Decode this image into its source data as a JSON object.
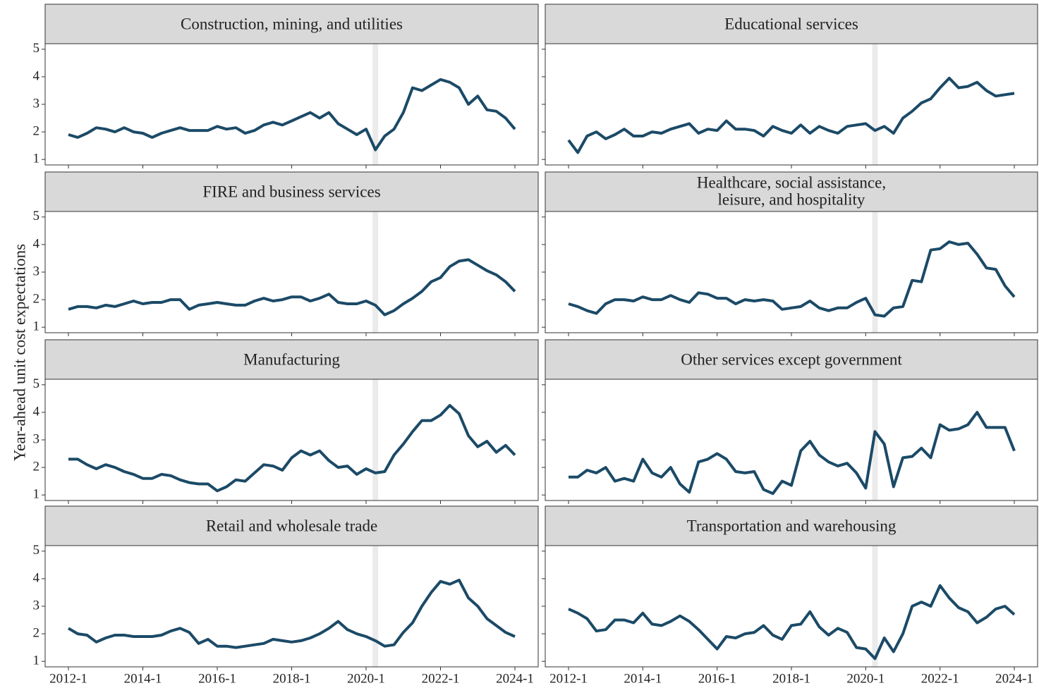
{
  "y_label": "Year-ahead unit cost expectations",
  "shared_axes": {
    "categories": [
      "2012-1",
      null,
      null,
      null,
      null,
      null,
      null,
      null,
      "2014-1",
      null,
      null,
      null,
      null,
      null,
      null,
      null,
      "2016-1",
      null,
      null,
      null,
      null,
      null,
      null,
      null,
      "2018-1",
      null,
      null,
      null,
      null,
      null,
      null,
      null,
      "2020-1",
      null,
      null,
      null,
      null,
      null,
      null,
      null,
      "2022-1",
      null,
      null,
      null,
      null,
      null,
      null,
      null,
      "2024-1"
    ],
    "ylim": [
      0.8,
      5.2
    ],
    "yticks": [
      1,
      2,
      3,
      4,
      5
    ],
    "shaded_index": 33,
    "color": "#1b4a67"
  },
  "chart_data": [
    {
      "type": "line",
      "title": "Construction, mining, and utilities",
      "values": [
        1.9,
        1.8,
        1.95,
        2.15,
        2.1,
        2.0,
        2.15,
        2.0,
        1.95,
        1.8,
        1.95,
        2.05,
        2.15,
        2.05,
        2.05,
        2.05,
        2.2,
        2.1,
        2.15,
        1.95,
        2.05,
        2.25,
        2.35,
        2.25,
        2.4,
        2.55,
        2.7,
        2.5,
        2.7,
        2.3,
        2.1,
        1.9,
        2.1,
        1.35,
        1.85,
        2.1,
        2.7,
        3.6,
        3.5,
        3.7,
        3.9,
        3.8,
        3.6,
        3.0,
        3.3,
        2.8,
        2.75,
        2.5,
        2.1
      ]
    },
    {
      "type": "line",
      "title": "Educational services",
      "values": [
        1.7,
        1.25,
        1.85,
        2.0,
        1.75,
        1.9,
        2.1,
        1.85,
        1.85,
        2.0,
        1.95,
        2.1,
        2.2,
        2.3,
        1.95,
        2.1,
        2.05,
        2.4,
        2.1,
        2.1,
        2.05,
        1.85,
        2.2,
        2.05,
        1.95,
        2.25,
        1.95,
        2.2,
        2.05,
        1.95,
        2.2,
        2.25,
        2.3,
        2.05,
        2.2,
        1.95,
        2.5,
        2.75,
        3.05,
        3.2,
        3.6,
        3.95,
        3.6,
        3.65,
        3.8,
        3.5,
        3.3,
        3.35,
        3.4
      ]
    },
    {
      "type": "line",
      "title": "FIRE and business services",
      "values": [
        1.65,
        1.75,
        1.75,
        1.7,
        1.8,
        1.75,
        1.85,
        1.95,
        1.85,
        1.9,
        1.9,
        2.0,
        2.0,
        1.65,
        1.8,
        1.85,
        1.9,
        1.85,
        1.8,
        1.8,
        1.95,
        2.05,
        1.95,
        2.0,
        2.1,
        2.1,
        1.95,
        2.05,
        2.2,
        1.9,
        1.85,
        1.85,
        1.95,
        1.8,
        1.45,
        1.6,
        1.85,
        2.05,
        2.3,
        2.65,
        2.8,
        3.2,
        3.4,
        3.45,
        3.25,
        3.05,
        2.9,
        2.65,
        2.3
      ]
    },
    {
      "type": "line",
      "title": [
        "Healthcare, social assistance,",
        "leisure, and hospitality"
      ],
      "values": [
        1.85,
        1.75,
        1.6,
        1.5,
        1.85,
        2.0,
        2.0,
        1.95,
        2.1,
        2.0,
        2.0,
        2.15,
        2.0,
        1.9,
        2.25,
        2.2,
        2.05,
        2.05,
        1.85,
        2.0,
        1.95,
        2.0,
        1.95,
        1.65,
        1.7,
        1.75,
        1.95,
        1.7,
        1.6,
        1.7,
        1.7,
        1.9,
        2.05,
        1.45,
        1.4,
        1.7,
        1.75,
        2.7,
        2.65,
        3.8,
        3.85,
        4.1,
        4.0,
        4.05,
        3.65,
        3.15,
        3.1,
        2.5,
        2.1
      ]
    },
    {
      "type": "line",
      "title": "Manufacturing",
      "values": [
        2.3,
        2.3,
        2.1,
        1.95,
        2.1,
        2.0,
        1.85,
        1.75,
        1.6,
        1.6,
        1.75,
        1.7,
        1.55,
        1.45,
        1.4,
        1.4,
        1.15,
        1.3,
        1.55,
        1.5,
        1.8,
        2.1,
        2.05,
        1.9,
        2.35,
        2.6,
        2.45,
        2.6,
        2.25,
        2.0,
        2.05,
        1.75,
        1.95,
        1.8,
        1.85,
        2.45,
        2.85,
        3.3,
        3.7,
        3.7,
        3.9,
        4.25,
        3.95,
        3.15,
        2.75,
        2.95,
        2.55,
        2.8,
        2.45
      ]
    },
    {
      "type": "line",
      "title": "Other services except government",
      "values": [
        1.65,
        1.65,
        1.9,
        1.8,
        2.0,
        1.5,
        1.6,
        1.5,
        2.3,
        1.8,
        1.65,
        2.0,
        1.4,
        1.1,
        2.2,
        2.3,
        2.5,
        2.3,
        1.85,
        1.8,
        1.85,
        1.2,
        1.05,
        1.5,
        1.35,
        2.6,
        2.95,
        2.45,
        2.2,
        2.05,
        2.15,
        1.8,
        1.25,
        3.3,
        2.85,
        1.3,
        2.35,
        2.4,
        2.7,
        2.35,
        3.55,
        3.35,
        3.4,
        3.55,
        4.0,
        3.45,
        3.45,
        3.45,
        2.6
      ]
    },
    {
      "type": "line",
      "title": "Retail and wholesale trade",
      "values": [
        2.2,
        2.0,
        1.95,
        1.7,
        1.85,
        1.95,
        1.95,
        1.9,
        1.9,
        1.9,
        1.95,
        2.1,
        2.2,
        2.05,
        1.65,
        1.8,
        1.55,
        1.55,
        1.5,
        1.55,
        1.6,
        1.65,
        1.8,
        1.75,
        1.7,
        1.75,
        1.85,
        2.0,
        2.2,
        2.45,
        2.15,
        2.0,
        1.9,
        1.75,
        1.55,
        1.6,
        2.05,
        2.4,
        3.0,
        3.5,
        3.9,
        3.8,
        3.95,
        3.3,
        3.0,
        2.55,
        2.3,
        2.05,
        1.9
      ]
    },
    {
      "type": "line",
      "title": "Transportation and warehousing",
      "values": [
        2.9,
        2.75,
        2.55,
        2.1,
        2.15,
        2.5,
        2.5,
        2.4,
        2.75,
        2.35,
        2.3,
        2.45,
        2.65,
        2.45,
        2.15,
        1.8,
        1.45,
        1.9,
        1.85,
        2.0,
        2.05,
        2.3,
        1.95,
        1.8,
        2.3,
        2.35,
        2.8,
        2.25,
        1.95,
        2.2,
        2.05,
        1.5,
        1.45,
        1.1,
        1.85,
        1.35,
        2.0,
        3.0,
        3.15,
        3.0,
        3.75,
        3.3,
        2.95,
        2.8,
        2.4,
        2.6,
        2.9,
        3.0,
        2.7
      ]
    }
  ]
}
